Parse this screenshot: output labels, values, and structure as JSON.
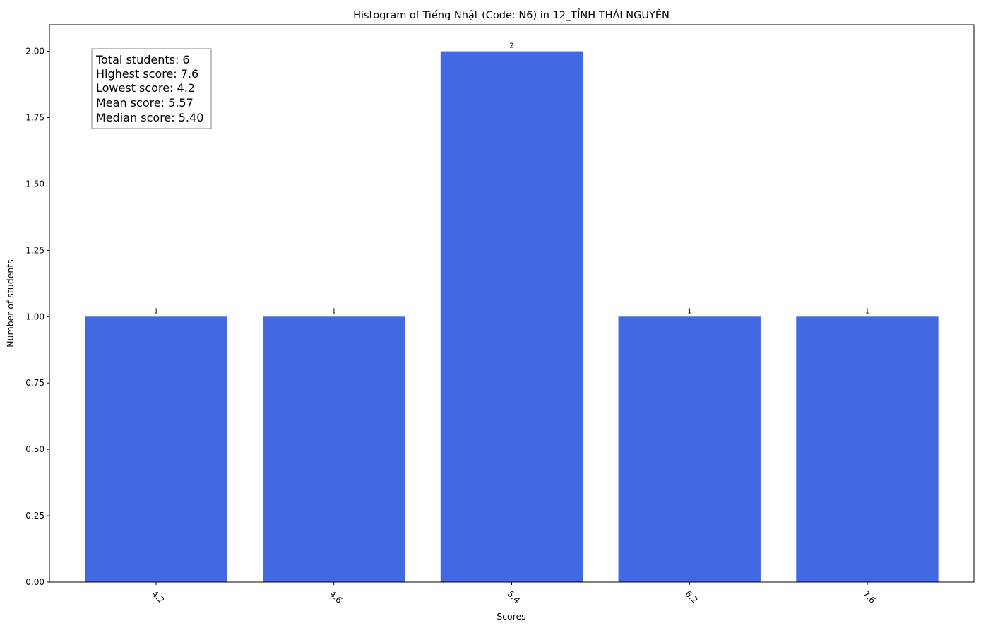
{
  "chart_data": {
    "type": "bar",
    "title": "Histogram of Tiếng Nhật (Code: N6) in 12_TỈNH THÁI NGUYÊN",
    "xlabel": "Scores",
    "ylabel": "Number of students",
    "categories": [
      "4.2",
      "4.6",
      "5.4",
      "6.2",
      "7.6"
    ],
    "values": [
      1,
      1,
      2,
      1,
      1
    ],
    "data_labels": [
      "1",
      "1",
      "2",
      "1",
      "1"
    ],
    "ylim": [
      0,
      2.1
    ],
    "yticks": [
      "0.00",
      "0.25",
      "0.50",
      "0.75",
      "1.00",
      "1.25",
      "1.50",
      "1.75",
      "2.00"
    ],
    "ytick_values": [
      0,
      0.25,
      0.5,
      0.75,
      1.0,
      1.25,
      1.5,
      1.75,
      2.0
    ],
    "xtick_rotation": 45,
    "grid": false,
    "legend": "none",
    "bar_color": "#4169E1",
    "stats_box": {
      "placement": "top-left",
      "lines": [
        "Total students: 6",
        "Highest score: 7.6",
        "Lowest score: 4.2",
        "Mean score: 5.57",
        "Median score: 5.40"
      ]
    }
  }
}
